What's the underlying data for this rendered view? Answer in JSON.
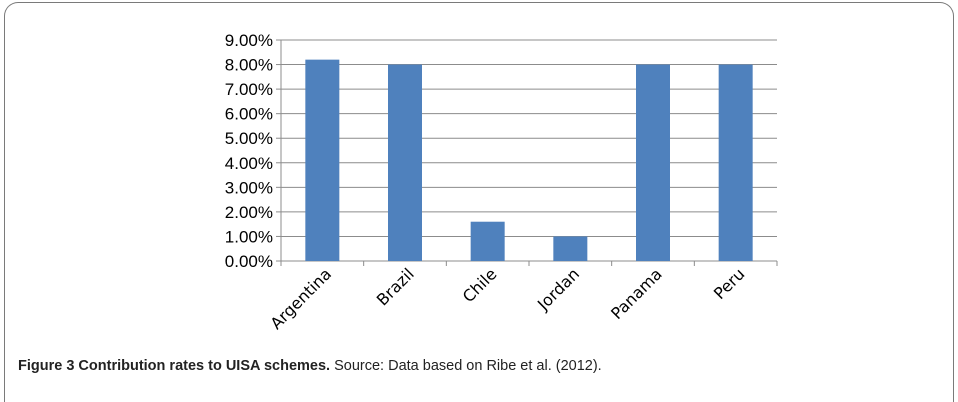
{
  "chart_data": {
    "type": "bar",
    "categories": [
      "Argentina",
      "Brazil",
      "Chile",
      "Jordan",
      "Panama",
      "Peru"
    ],
    "values": [
      0.082,
      0.08,
      0.016,
      0.01,
      0.08,
      0.08
    ],
    "ylim": [
      0,
      0.09
    ],
    "y_ticks": [
      "0.00%",
      "1.00%",
      "2.00%",
      "3.00%",
      "4.00%",
      "5.00%",
      "6.00%",
      "7.00%",
      "8.00%",
      "9.00%"
    ],
    "grid": true,
    "bar_color": "#4f81bd"
  },
  "caption": {
    "label": "Figure 3 Contribution rates to UISA schemes.",
    "text": " Source: Data based on Ribe et al. (2012)."
  }
}
